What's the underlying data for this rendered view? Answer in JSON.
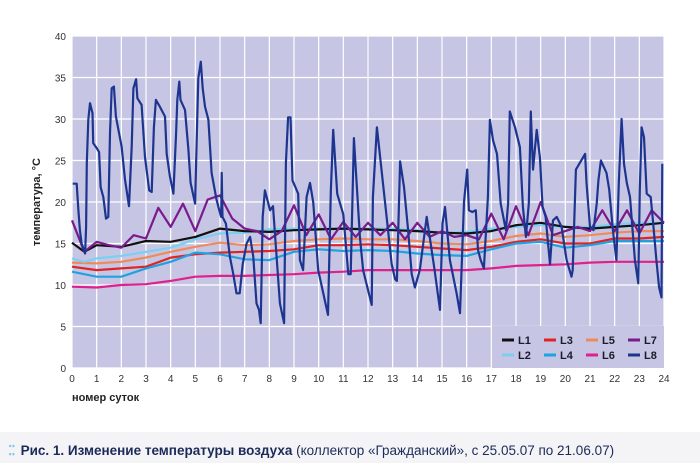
{
  "chart_data": {
    "type": "line",
    "title": "",
    "xlabel": "номер суток",
    "ylabel": "температура, °С",
    "xlim": [
      0,
      24
    ],
    "ylim": [
      0,
      40
    ],
    "xticks": [
      "0",
      "1",
      "2",
      "3",
      "4",
      "5",
      "6",
      "7",
      "8",
      "9",
      "10",
      "11",
      "12",
      "13",
      "14",
      "15",
      "16",
      "17",
      "18",
      "19",
      "20",
      "21",
      "22",
      "23",
      "24"
    ],
    "yticks": [
      "0",
      "5",
      "10",
      "15",
      "20",
      "25",
      "30",
      "35",
      "40"
    ],
    "grid": true,
    "legend_position": "bottom-right",
    "background": "#c6c6e4",
    "series": [
      {
        "name": "L1",
        "color": "#111111",
        "x": [
          0,
          0.5,
          1,
          2,
          3,
          4,
          5,
          6,
          7,
          8,
          9,
          10,
          11,
          12,
          13,
          14,
          15,
          16,
          17,
          18,
          19,
          20,
          21,
          22,
          23,
          24
        ],
        "y": [
          15.1,
          14,
          14.8,
          14.6,
          15.3,
          15.2,
          15.8,
          16.8,
          16.5,
          16.4,
          16.6,
          16.7,
          16.8,
          16.7,
          16.6,
          16.5,
          16.3,
          16.2,
          16.5,
          17.2,
          17.5,
          17,
          16.8,
          17,
          17.2,
          17.5
        ]
      },
      {
        "name": "L2",
        "color": "#7ccff0",
        "x": [
          0,
          0.5,
          1,
          2,
          3,
          4,
          5,
          6,
          7,
          8,
          9,
          10,
          11,
          12,
          13,
          14,
          15,
          16,
          17,
          18,
          19,
          20,
          21,
          22,
          23,
          24
        ],
        "y": [
          13.2,
          12.8,
          13.2,
          13.5,
          14,
          14.5,
          15.5,
          16.2,
          16.3,
          16.7,
          16.8,
          16.8,
          16.8,
          16.8,
          16.8,
          16.6,
          16.3,
          16.4,
          16.8,
          17,
          17.2,
          17,
          17,
          17.3,
          17.5,
          17.5
        ]
      },
      {
        "name": "L3",
        "color": "#e02424",
        "x": [
          0,
          1,
          2,
          3,
          4,
          5,
          6,
          7,
          8,
          9,
          10,
          11,
          12,
          13,
          14,
          15,
          16,
          17,
          18,
          19,
          20,
          21,
          22,
          23,
          24
        ],
        "y": [
          12.2,
          11.8,
          12,
          12.2,
          13.3,
          13.7,
          13.9,
          14,
          14.1,
          14.3,
          14.8,
          14.8,
          14.9,
          14.8,
          14.6,
          14.4,
          14.2,
          14.6,
          15.2,
          15.5,
          15,
          15,
          15.6,
          15.6,
          15.8
        ]
      },
      {
        "name": "L4",
        "color": "#1ea2e0",
        "x": [
          0,
          1,
          2,
          3,
          4,
          5,
          6,
          7,
          8,
          9,
          10,
          11,
          12,
          13,
          14,
          15,
          16,
          17,
          18,
          19,
          20,
          21,
          22,
          23,
          24
        ],
        "y": [
          11.6,
          11,
          11,
          12,
          12.8,
          13.9,
          13.7,
          13.1,
          13,
          14,
          14.3,
          14.1,
          14.2,
          14.1,
          13.8,
          13.6,
          13.5,
          14.3,
          15,
          15.2,
          14.5,
          14.8,
          15.3,
          15.3,
          15.3
        ]
      },
      {
        "name": "L5",
        "color": "#f08a5a",
        "x": [
          0,
          1,
          2,
          3,
          4,
          5,
          6,
          7,
          8,
          9,
          10,
          11,
          12,
          13,
          14,
          15,
          16,
          17,
          18,
          19,
          20,
          21,
          22,
          23,
          24
        ],
        "y": [
          12.7,
          12.6,
          12.8,
          13.3,
          14,
          14.6,
          15.1,
          14.8,
          14.9,
          15.3,
          15.5,
          15.6,
          15.5,
          15.5,
          15.3,
          15,
          14.9,
          15.3,
          15.9,
          16.2,
          15.8,
          16,
          16.3,
          16.5,
          16.5
        ]
      },
      {
        "name": "L6",
        "color": "#e0208c",
        "x": [
          0,
          1,
          2,
          3,
          4,
          5,
          6,
          7,
          8,
          9,
          10,
          11,
          12,
          13,
          14,
          15,
          16,
          17,
          18,
          19,
          20,
          21,
          22,
          23,
          24
        ],
        "y": [
          9.8,
          9.7,
          10,
          10.1,
          10.5,
          11,
          11.1,
          11.1,
          11.2,
          11.3,
          11.5,
          11.6,
          11.8,
          11.8,
          11.8,
          11.8,
          11.8,
          12,
          12.3,
          12.4,
          12.5,
          12.7,
          12.8,
          12.8,
          12.8
        ]
      },
      {
        "name": "L7",
        "color": "#7a1a8c",
        "x": [
          0,
          0.5,
          1,
          1.5,
          2,
          2.5,
          3,
          3.5,
          4,
          4.5,
          5,
          5.5,
          6,
          6.5,
          7,
          7.5,
          8,
          8.5,
          9,
          9.5,
          10,
          10.5,
          11,
          11.5,
          12,
          12.5,
          13,
          13.5,
          14,
          14.5,
          15,
          15.5,
          16,
          16.5,
          17,
          17.5,
          18,
          18.5,
          19,
          19.5,
          20,
          20.5,
          21,
          21.5,
          22,
          22.5,
          23,
          23.5,
          24
        ],
        "y": [
          17.8,
          14,
          15.2,
          14.8,
          14.5,
          16,
          15.6,
          19.3,
          17,
          19.8,
          16.5,
          20.3,
          20.8,
          18,
          16.8,
          16.5,
          15.5,
          16.5,
          19.6,
          16,
          18.5,
          15.5,
          17.6,
          15.8,
          17.5,
          16,
          17.5,
          15.5,
          17.5,
          15.8,
          16.5,
          15.8,
          16,
          15.5,
          18.6,
          15.5,
          19.5,
          16,
          20,
          16,
          16.5,
          17,
          16.5,
          19,
          16.5,
          19,
          16.2,
          19,
          17.5
        ]
      },
      {
        "name": "L8",
        "color": "#1e3590",
        "x": [
          0.03,
          0.19,
          0.26,
          0.32,
          0.39,
          0.53,
          0.57,
          0.6,
          0.66,
          0.73,
          0.83,
          0.86,
          1.0,
          1.1,
          1.16,
          1.27,
          1.38,
          1.47,
          1.54,
          1.61,
          1.7,
          1.78,
          2.01,
          2.15,
          2.31,
          2.42,
          2.49,
          2.6,
          2.65,
          2.82,
          2.96,
          3.13,
          3.23,
          3.32,
          3.4,
          3.56,
          3.77,
          3.84,
          3.97,
          4.11,
          4.22,
          4.27,
          4.35,
          4.4,
          4.58,
          4.72,
          4.81,
          4.99,
          5.05,
          5.12,
          5.22,
          5.3,
          5.39,
          5.53,
          5.66,
          5.86,
          5.97,
          6.05,
          6.07,
          6.1,
          6.24,
          6.4,
          6.54,
          6.67,
          6.8,
          6.92,
          7.08,
          7.22,
          7.35,
          7.48,
          7.58,
          7.65,
          7.73,
          7.82,
          8.03,
          8.15,
          8.43,
          8.6,
          8.67,
          8.76,
          8.86,
          8.94,
          9.17,
          9.24,
          9.37,
          9.51,
          9.65,
          9.78,
          9.98,
          10.38,
          10.49,
          10.59,
          10.75,
          11.0,
          11.2,
          11.3,
          11.43,
          11.67,
          11.8,
          12.15,
          12.2,
          12.36,
          12.69,
          12.96,
          13.1,
          13.17,
          13.3,
          13.46,
          13.63,
          13.77,
          13.9,
          14.1,
          14.38,
          14.5,
          14.7,
          14.92,
          15.02,
          15.12,
          15.32,
          15.59,
          15.73,
          15.89,
          16.02,
          16.09,
          16.23,
          16.37,
          16.46,
          16.57,
          16.7,
          16.86,
          16.94,
          17.07,
          17.23,
          17.38,
          17.59,
          17.68,
          17.75,
          17.96,
          18.16,
          18.28,
          18.4,
          18.52,
          18.6,
          18.69,
          18.84,
          18.97,
          19.08,
          19.2,
          19.38,
          19.5,
          19.65,
          19.85,
          20.05,
          20.25,
          20.3,
          20.43,
          20.8,
          20.86,
          21.0,
          21.14,
          21.27,
          21.34,
          21.44,
          21.67,
          21.78,
          21.93,
          22.07,
          22.17,
          22.28,
          22.38,
          22.49,
          22.62,
          22.82,
          22.96,
          23.02,
          23.09,
          23.19,
          23.3,
          23.46,
          23.55,
          23.69,
          23.8,
          23.9,
          23.93
        ],
        "y": [
          22.2,
          22.2,
          19,
          16.6,
          15,
          13.8,
          17,
          24.7,
          29.9,
          31.9,
          30.7,
          27.1,
          26.5,
          26,
          21.8,
          20.6,
          18,
          18.2,
          28.3,
          33.7,
          33.9,
          30.3,
          26.7,
          22.7,
          19.5,
          26.7,
          33.7,
          34.8,
          32.5,
          31.7,
          25.4,
          21.4,
          21.2,
          29,
          32.3,
          31.5,
          30.3,
          25.8,
          23.1,
          21,
          28.3,
          32.3,
          34.5,
          32.3,
          31.1,
          26.3,
          22.3,
          19.8,
          27.1,
          34.9,
          36.9,
          33.7,
          31.5,
          29.9,
          23.5,
          20.3,
          19,
          18.2,
          23.5,
          18.2,
          17.4,
          13.4,
          11.3,
          9,
          9,
          12.5,
          15,
          15.8,
          13.4,
          7.8,
          7,
          5.4,
          18.2,
          21.4,
          19,
          19.5,
          7.8,
          5.4,
          24.7,
          30.2,
          30.2,
          22.6,
          21,
          13,
          11.8,
          20.6,
          22.3,
          20,
          11.8,
          6.4,
          21.2,
          28.7,
          21,
          18.5,
          11.3,
          11.3,
          27.7,
          15.8,
          11.8,
          7.6,
          20.6,
          29,
          20,
          12.5,
          10.7,
          10.5,
          24.9,
          21.8,
          16.5,
          11.3,
          9.7,
          11.8,
          18.2,
          15.8,
          11.8,
          7,
          17.4,
          19.4,
          13,
          9,
          6.6,
          20,
          23.9,
          19,
          18.8,
          19,
          14.2,
          13,
          12,
          20.6,
          29.9,
          27.4,
          25.8,
          19.8,
          16.6,
          19.8,
          30.9,
          29,
          26.6,
          19.4,
          15.8,
          19.8,
          30.9,
          23.9,
          28.7,
          25.4,
          19.4,
          18.2,
          12.5,
          17.8,
          18.2,
          17,
          13,
          11,
          11.8,
          23.9,
          25.8,
          22.3,
          17,
          16.6,
          19.8,
          22.6,
          25,
          23.5,
          21.5,
          16.6,
          13,
          22.6,
          30,
          24.6,
          22.3,
          20.6,
          13,
          10.2,
          21.5,
          29,
          27.8,
          21,
          20.6,
          17.8,
          13,
          9.7,
          8.5,
          24.6
        ]
      }
    ]
  },
  "caption": {
    "icon": "dots-icon",
    "bold": "Рис. 1. Изменение температуры воздуха",
    "rest": " (коллектор «Гражданский», с 25.05.07 по 21.06.07)"
  }
}
